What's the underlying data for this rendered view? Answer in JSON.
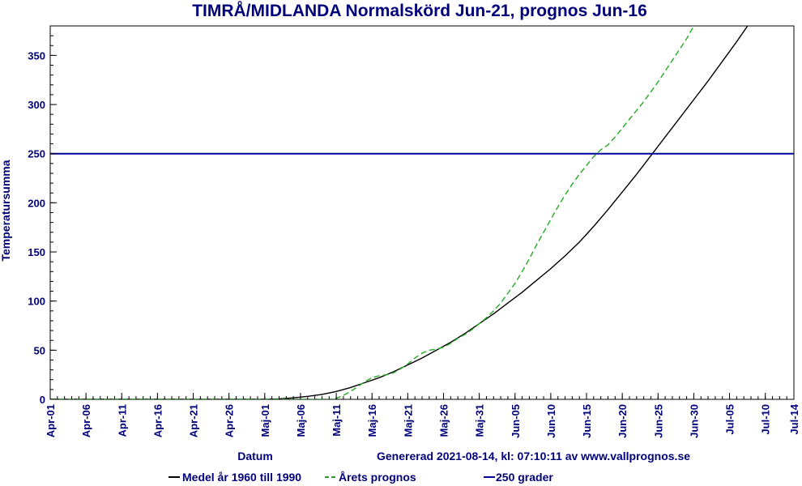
{
  "chart_data": {
    "type": "line",
    "title": "TIMRÅ/MIDLANDA Normalskörd Jun-21, prognos Jun-16",
    "xlabel": "Datum",
    "ylabel": "Temperatursumma",
    "generated": "Genererad 2021-08-14, kl: 07:10:11 av www.vallprognos.se",
    "ylim": [
      0,
      380
    ],
    "yticks": [
      0,
      50,
      100,
      150,
      200,
      250,
      300,
      350
    ],
    "xticks": [
      "Apr-01",
      "Apr-06",
      "Apr-11",
      "Apr-16",
      "Apr-21",
      "Apr-26",
      "Maj-01",
      "Maj-06",
      "Maj-11",
      "Maj-16",
      "Maj-21",
      "Maj-26",
      "Maj-31",
      "Jun-05",
      "Jun-10",
      "Jun-15",
      "Jun-20",
      "Jun-25",
      "Jun-30",
      "Jul-05",
      "Jul-10",
      "Jul-14"
    ],
    "xtick_days": [
      0,
      5,
      10,
      15,
      20,
      25,
      30,
      35,
      40,
      45,
      50,
      55,
      60,
      65,
      70,
      75,
      80,
      85,
      90,
      95,
      100,
      104
    ],
    "x_days_max": 104,
    "grid": false,
    "legend_position": "bottom",
    "series": [
      {
        "name": "Medel år 1960 till 1990",
        "color": "#000000",
        "dash": "solid",
        "points": [
          [
            0,
            0
          ],
          [
            30,
            0
          ],
          [
            32,
            0.5
          ],
          [
            34,
            1.5
          ],
          [
            36,
            3
          ],
          [
            38,
            5
          ],
          [
            40,
            8
          ],
          [
            42,
            12
          ],
          [
            44,
            17
          ],
          [
            46,
            22
          ],
          [
            48,
            28
          ],
          [
            50,
            35
          ],
          [
            52,
            42
          ],
          [
            54,
            50
          ],
          [
            56,
            58
          ],
          [
            58,
            67
          ],
          [
            60,
            77
          ],
          [
            62,
            87
          ],
          [
            64,
            98
          ],
          [
            66,
            109
          ],
          [
            68,
            121
          ],
          [
            70,
            133
          ],
          [
            72,
            146
          ],
          [
            74,
            160
          ],
          [
            76,
            176
          ],
          [
            78,
            193
          ],
          [
            80,
            211
          ],
          [
            82,
            229
          ],
          [
            84,
            248
          ],
          [
            86,
            267
          ],
          [
            88,
            286
          ],
          [
            90,
            305
          ],
          [
            92,
            324
          ],
          [
            94,
            344
          ],
          [
            96,
            364
          ],
          [
            98,
            385
          ]
        ]
      },
      {
        "name": "Årets prognos",
        "color": "#22aa22",
        "dash": "dashed",
        "points": [
          [
            0,
            0
          ],
          [
            39,
            0
          ],
          [
            40,
            1
          ],
          [
            41,
            4
          ],
          [
            42,
            8
          ],
          [
            43,
            13
          ],
          [
            44,
            18
          ],
          [
            45,
            22
          ],
          [
            46,
            24
          ],
          [
            47,
            25
          ],
          [
            48,
            27
          ],
          [
            49,
            31
          ],
          [
            50,
            36
          ],
          [
            51,
            42
          ],
          [
            52,
            47
          ],
          [
            53,
            50
          ],
          [
            54,
            51
          ],
          [
            55,
            53
          ],
          [
            56,
            57
          ],
          [
            57,
            62
          ],
          [
            58,
            66
          ],
          [
            59,
            71
          ],
          [
            60,
            77
          ],
          [
            61,
            83
          ],
          [
            62,
            90
          ],
          [
            63,
            98
          ],
          [
            64,
            108
          ],
          [
            65,
            118
          ],
          [
            66,
            130
          ],
          [
            67,
            143
          ],
          [
            68,
            157
          ],
          [
            69,
            170
          ],
          [
            70,
            183
          ],
          [
            71,
            196
          ],
          [
            72,
            208
          ],
          [
            73,
            219
          ],
          [
            74,
            229
          ],
          [
            75,
            238
          ],
          [
            76,
            247
          ],
          [
            77,
            254
          ],
          [
            78,
            259
          ],
          [
            79,
            267
          ],
          [
            80,
            276
          ],
          [
            81,
            285
          ],
          [
            82,
            294
          ],
          [
            83,
            303
          ],
          [
            84,
            313
          ],
          [
            85,
            323
          ],
          [
            86,
            334
          ],
          [
            87,
            345
          ],
          [
            88,
            356
          ],
          [
            89,
            367
          ],
          [
            90,
            380
          ]
        ]
      },
      {
        "name": "250 grader",
        "color": "#00009a",
        "dash": "solid",
        "points": [
          [
            0,
            250
          ],
          [
            104,
            250
          ]
        ]
      }
    ]
  }
}
